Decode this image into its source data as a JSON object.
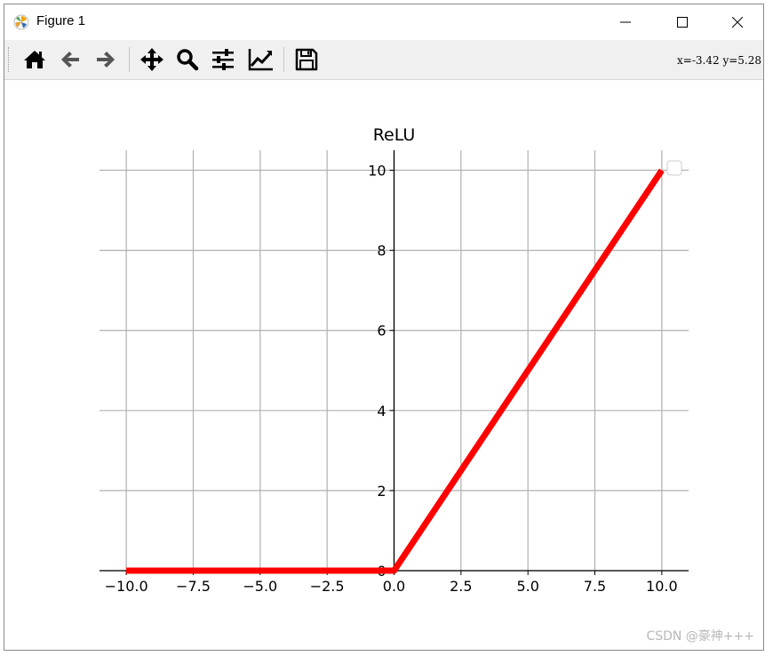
{
  "window": {
    "title": "Figure 1",
    "minimize_icon": "minimize-icon",
    "maximize_icon": "maximize-icon",
    "close_icon": "close-icon"
  },
  "toolbar": {
    "tools": [
      {
        "name": "home-icon"
      },
      {
        "name": "back-arrow-icon"
      },
      {
        "name": "forward-arrow-icon"
      },
      {
        "name": "pan-move-icon"
      },
      {
        "name": "zoom-magnifier-icon"
      },
      {
        "name": "subplots-sliders-icon"
      },
      {
        "name": "edit-axis-curves-icon"
      },
      {
        "name": "save-floppy-icon"
      }
    ],
    "coords": "x=-3.42 y=5.28"
  },
  "watermark": "CSDN @豪神+++",
  "colors": {
    "line": "#ff0000",
    "grid": "#b0b0b0",
    "axis": "#000000",
    "toolbar_bg": "#f0f0f0"
  },
  "chart_data": {
    "type": "line",
    "title": "ReLU",
    "xlabel": "",
    "ylabel": "",
    "xlim": [
      -11,
      11
    ],
    "ylim": [
      0,
      10.5
    ],
    "xticks": [
      -10.0,
      -7.5,
      -5.0,
      -2.5,
      0.0,
      2.5,
      5.0,
      7.5,
      10.0
    ],
    "xtick_labels": [
      "−10.0",
      "−7.5",
      "−5.0",
      "−2.5",
      "0.0",
      "2.5",
      "5.0",
      "7.5",
      "10.0"
    ],
    "yticks": [
      0,
      2,
      4,
      6,
      8,
      10
    ],
    "ytick_labels": [
      "0",
      "2",
      "4",
      "6",
      "8",
      "10"
    ],
    "grid": true,
    "spines": "centered",
    "legend": "top-right (empty)",
    "series": [
      {
        "color": "#ff0000",
        "x": [
          -10,
          0,
          10
        ],
        "y": [
          0,
          0,
          10
        ]
      }
    ]
  }
}
